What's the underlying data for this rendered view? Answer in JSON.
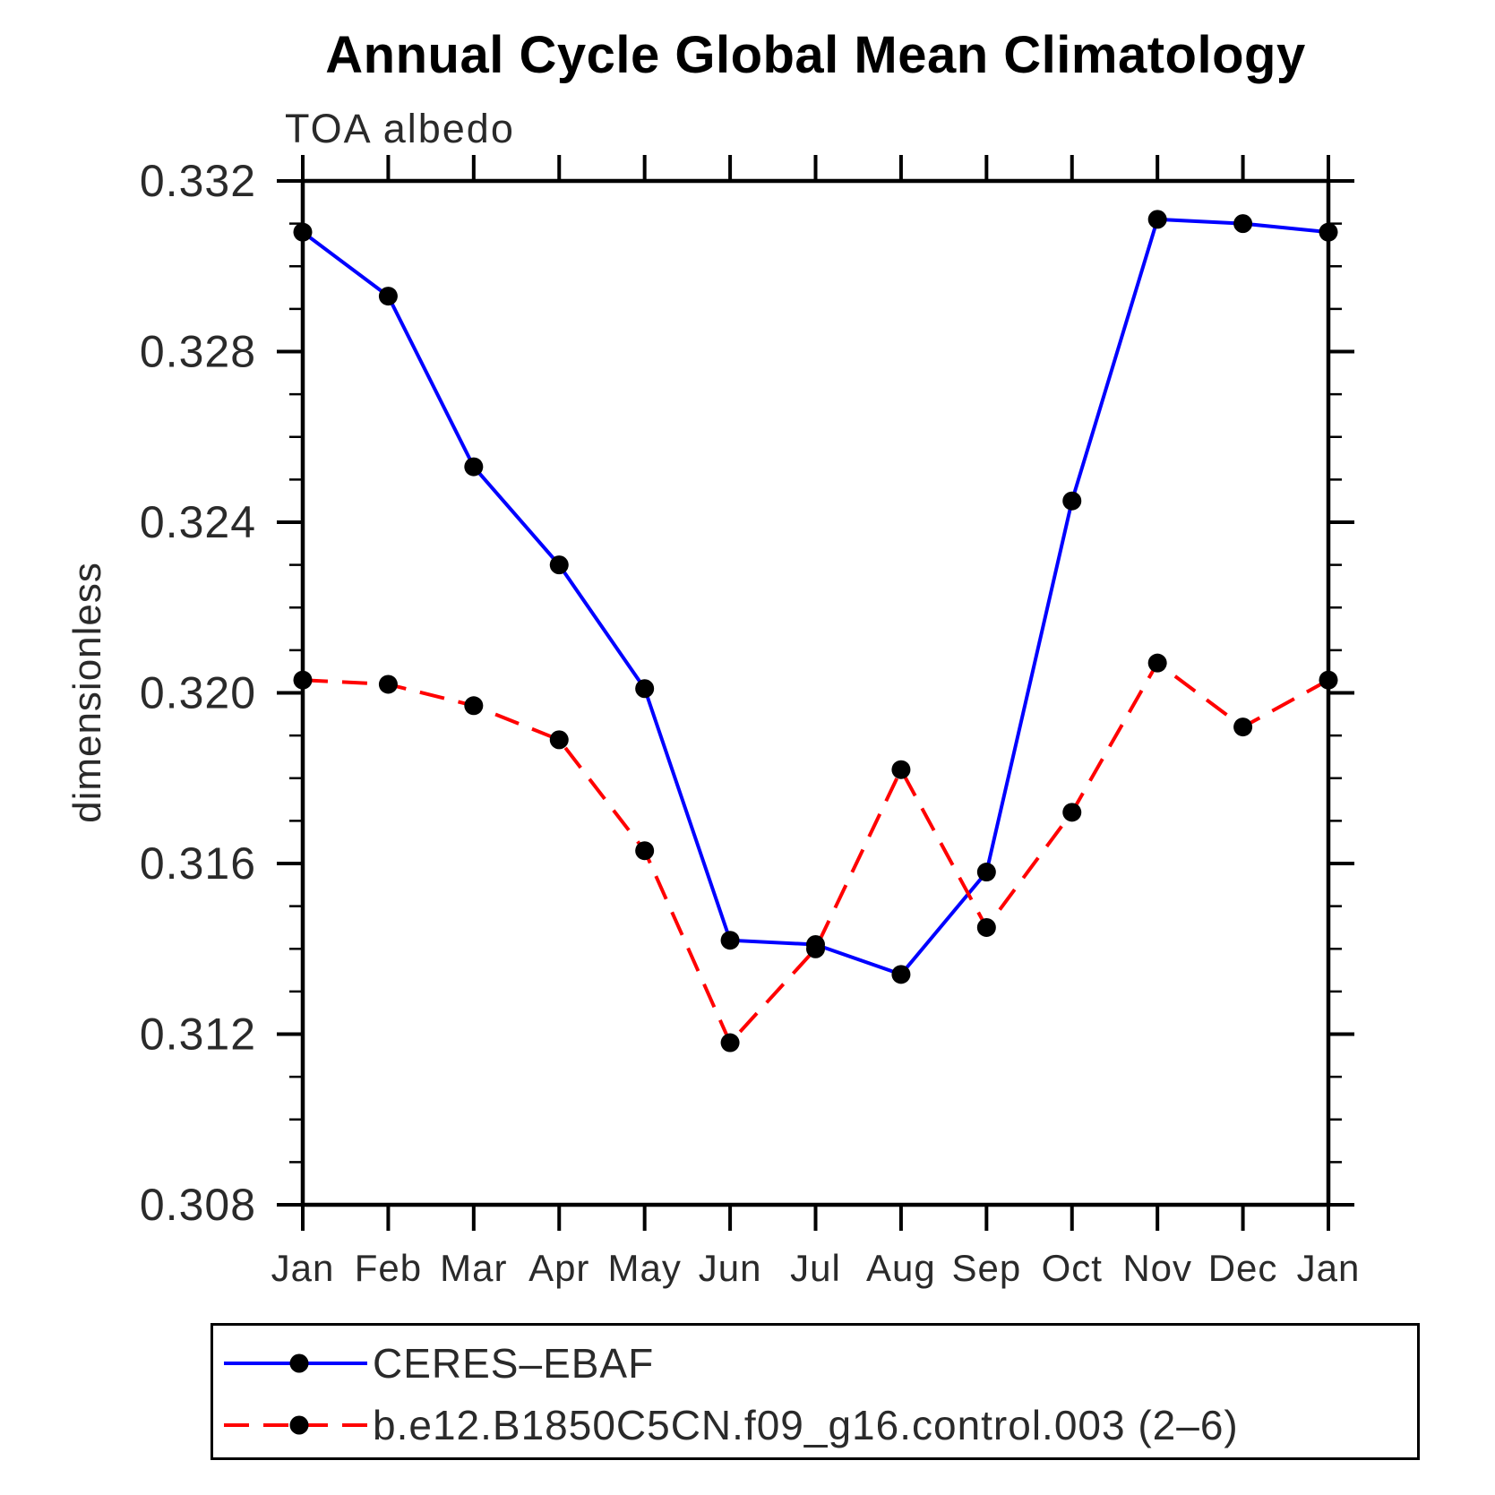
{
  "title": "Annual Cycle Global Mean Climatology",
  "subtitle": "TOA albedo",
  "ylabel": "dimensionless",
  "legend": {
    "entries": [
      {
        "label": "CERES–EBAF"
      },
      {
        "label": "b.e12.B1850C5CN.f09_g16.control.003 (2–6)"
      }
    ]
  },
  "chart_data": {
    "type": "line",
    "title": "Annual Cycle Global Mean Climatology",
    "subtitle": "TOA albedo",
    "xlabel": "",
    "ylabel": "dimensionless",
    "categories": [
      "Jan",
      "Feb",
      "Mar",
      "Apr",
      "May",
      "Jun",
      "Jul",
      "Aug",
      "Sep",
      "Oct",
      "Nov",
      "Dec",
      "Jan"
    ],
    "series": [
      {
        "name": "CERES–EBAF",
        "color": "#0000ff",
        "line_style": "solid",
        "values": [
          0.3308,
          0.3293,
          0.3253,
          0.323,
          0.3201,
          0.3142,
          0.3141,
          0.3134,
          0.3158,
          0.3245,
          0.3311,
          0.331,
          0.3308
        ]
      },
      {
        "name": "b.e12.B1850C5CN.f09_g16.control.003 (2–6)",
        "color": "#ff0000",
        "line_style": "dashed",
        "values": [
          0.3203,
          0.3202,
          0.3197,
          0.3189,
          0.3163,
          0.3118,
          0.314,
          0.3182,
          0.3145,
          0.3172,
          0.3207,
          0.3192,
          0.3203
        ]
      }
    ],
    "marker": "filled-circle",
    "marker_color": "#000000",
    "ylim": [
      0.308,
      0.332
    ],
    "ytick_step": 0.004,
    "yminor_step": 0.001,
    "ytick_labels": [
      "0.332",
      "0.328",
      "0.324",
      "0.320",
      "0.316",
      "0.312",
      "0.308"
    ],
    "grid": false,
    "legend_position": "bottom"
  }
}
